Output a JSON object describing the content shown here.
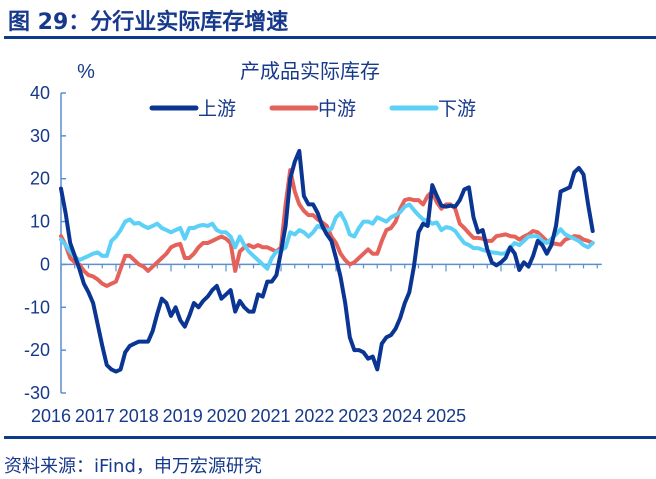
{
  "figure_title": "图 29：分行业实际库存增速",
  "source": "资料来源：iFind，申万宏源研究",
  "chart_data": {
    "type": "line",
    "title": "产成品实际库存",
    "ylabel": "%",
    "ylim": [
      -30,
      40
    ],
    "yticks": [
      40,
      30,
      20,
      10,
      0,
      -10,
      -20,
      -30
    ],
    "xticks": [
      "2016",
      "2017",
      "2018",
      "2019",
      "2020",
      "2021",
      "2022",
      "2023",
      "2024",
      "2025"
    ],
    "x_start": "2016-01",
    "x_end": "2025-09",
    "frequency": "monthly",
    "grid": false,
    "legend": "top",
    "series": [
      {
        "name": "上游",
        "color": "#0b3592",
        "values": [
          17.7,
          12,
          5,
          2,
          -1,
          -4.5,
          -6.5,
          -9,
          -14,
          -19,
          -23.5,
          -24.5,
          -25,
          -24.5,
          -20.5,
          -19,
          -18.5,
          -18,
          -18,
          -18,
          -15.5,
          -11.5,
          -8,
          -9,
          -12,
          -10,
          -13,
          -14.5,
          -12,
          -9,
          -10,
          -8.5,
          -7.5,
          -6,
          -5,
          -8,
          -7,
          -6,
          -11,
          -8.5,
          -10,
          -11,
          -11,
          -7,
          -7.5,
          -4,
          -4,
          -2.5,
          3,
          9,
          20,
          24,
          26.5,
          16,
          14,
          14,
          12,
          9,
          7,
          5.5,
          1.5,
          -3,
          -9,
          -17,
          -20,
          -20,
          -20.5,
          -22,
          -21.5,
          -24.5,
          -18.5,
          -17,
          -16.5,
          -15,
          -12.5,
          -9,
          -6.5,
          -0.5,
          7.5,
          9.5,
          9,
          18.5,
          16,
          13.7,
          13.5,
          13.7,
          13.5,
          15,
          17.5,
          18,
          11,
          7.5,
          8,
          3.5,
          0.5,
          -0.2,
          0.5,
          1.5,
          4,
          2.5,
          -1.3,
          0.5,
          -0.5,
          2,
          5.5,
          4.5,
          2.5,
          4.5,
          9,
          17,
          17.5,
          18,
          21.5,
          22.5,
          21,
          14,
          7.8
        ]
      },
      {
        "name": "中游",
        "color": "#e5625b",
        "values": [
          6.6,
          4.5,
          1.5,
          0.5,
          0,
          -1.5,
          -2.5,
          -2.8,
          -3.5,
          -4.5,
          -5,
          -4.5,
          -4,
          -1,
          2,
          2,
          1,
          0,
          -0.5,
          -1.5,
          -0.5,
          0.5,
          1.5,
          2.5,
          4,
          4.5,
          4.8,
          1.5,
          1.5,
          2.5,
          4,
          5,
          5,
          5.5,
          6,
          6.5,
          6,
          5,
          -1.5,
          3,
          4,
          4.5,
          4,
          4.5,
          4,
          4,
          3.5,
          3,
          4,
          14,
          22,
          17,
          14,
          12.5,
          11.5,
          11.5,
          10.5,
          9.8,
          9,
          6.5,
          5,
          2.5,
          1,
          0,
          0.5,
          1.5,
          2.5,
          3.5,
          2.5,
          2.5,
          5.5,
          8,
          8.5,
          10,
          13,
          15,
          15.3,
          15,
          15,
          14,
          16,
          17,
          14.5,
          13,
          14,
          14,
          13,
          9.5,
          8.5,
          7.3,
          6.2,
          6.2,
          6,
          5.5,
          5.5,
          6.6,
          6.8,
          7,
          6.6,
          6.5,
          5.8,
          6.5,
          7,
          7.8,
          7.5,
          6.5,
          5.5,
          5,
          4.8,
          4.6,
          5.8,
          6.2,
          6.6,
          6.5,
          5.8,
          5.5,
          5
        ]
      },
      {
        "name": "下游",
        "color": "#5dd0f8",
        "values": [
          5.8,
          4.5,
          3,
          1.8,
          1,
          1.5,
          2,
          2.5,
          2.8,
          2,
          2,
          5.5,
          6.5,
          8,
          10,
          10.5,
          9.5,
          9.7,
          9,
          8.5,
          9,
          9.5,
          8.5,
          8,
          7.5,
          8,
          8.5,
          6,
          8.5,
          8.5,
          9,
          9.2,
          9,
          9.5,
          8,
          7.5,
          7.5,
          6.5,
          4,
          6.5,
          4.5,
          3,
          2,
          1,
          0,
          -1,
          1.5,
          3,
          3.2,
          4,
          7.5,
          7,
          8,
          7.5,
          6.5,
          7.5,
          9,
          8.5,
          8,
          8.3,
          11,
          12,
          10,
          7,
          6.5,
          8.5,
          10,
          10,
          9.5,
          11,
          10.5,
          10,
          11,
          11.5,
          12.2,
          13.5,
          14,
          12.7,
          11.5,
          10.5,
          10.2,
          9.5,
          9.8,
          8,
          8.7,
          8.5,
          7.8,
          6.3,
          5,
          4.5,
          3.8,
          3.8,
          3.4,
          3.1,
          2.8,
          2.7,
          2.5,
          2.6,
          4,
          5,
          4.5,
          5.5,
          6.5,
          6.6,
          6.6,
          5.5,
          5,
          6,
          7,
          8.2,
          7,
          6.5,
          6,
          5.5,
          4.5,
          4,
          5
        ]
      }
    ]
  }
}
